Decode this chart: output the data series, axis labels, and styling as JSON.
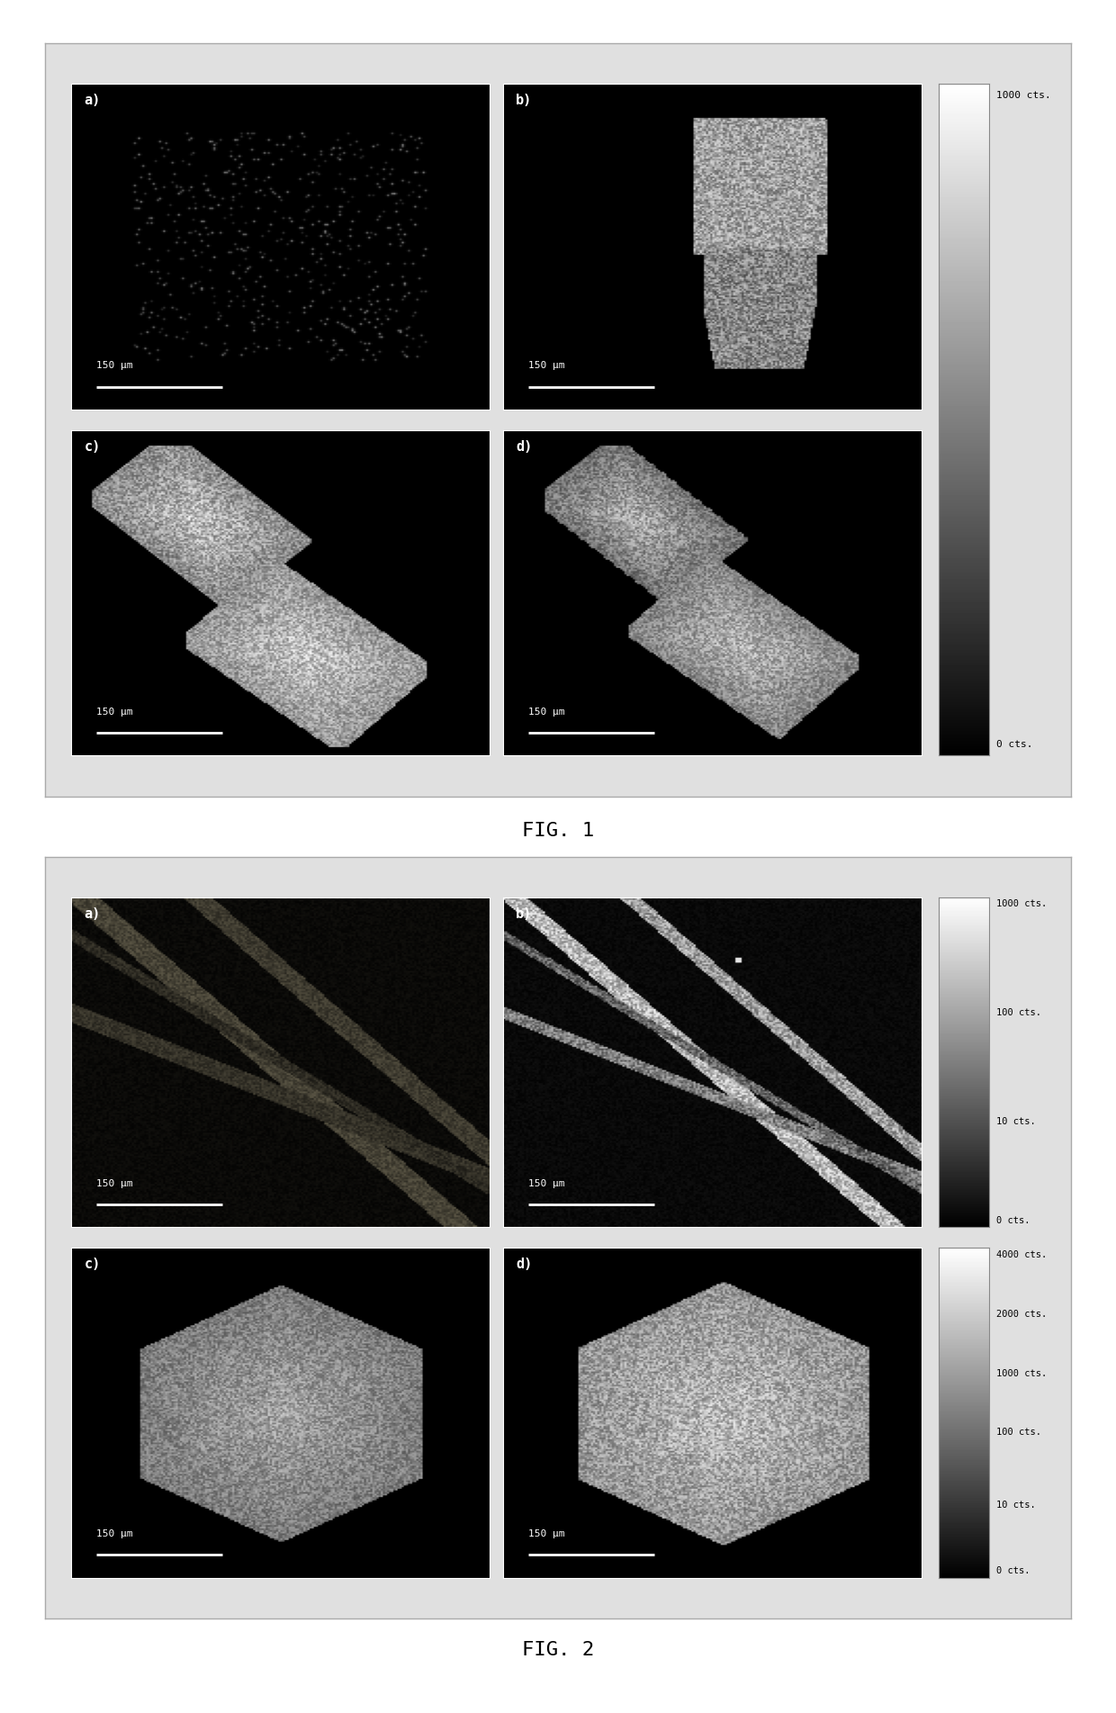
{
  "fig1_title": "FIG. 1",
  "fig2_title": "FIG. 2",
  "panel_labels_fig1": [
    "a)",
    "b)",
    "c)",
    "d)"
  ],
  "panel_labels_fig2": [
    "a)",
    "b)",
    "c)",
    "d)"
  ],
  "scale_bar_text": "150 μm",
  "fig1_colorbar_ticks": [
    "1000 cts.",
    "0 cts."
  ],
  "fig2_top_colorbar_ticks": [
    "1000 cts.",
    "100 cts.",
    "10 cts.",
    "0 cts."
  ],
  "fig2_bot_colorbar_ticks": [
    "4000 cts.",
    "2000 cts.",
    "1000 cts.",
    "100 cts.",
    "10 cts.",
    "0 cts."
  ],
  "background_color": "#ffffff",
  "figure_bg": "#e0e0e0",
  "label_color": "#ffffff",
  "fig_label_fontsize": 11,
  "scale_fontsize": 8,
  "caption_fontsize": 16
}
